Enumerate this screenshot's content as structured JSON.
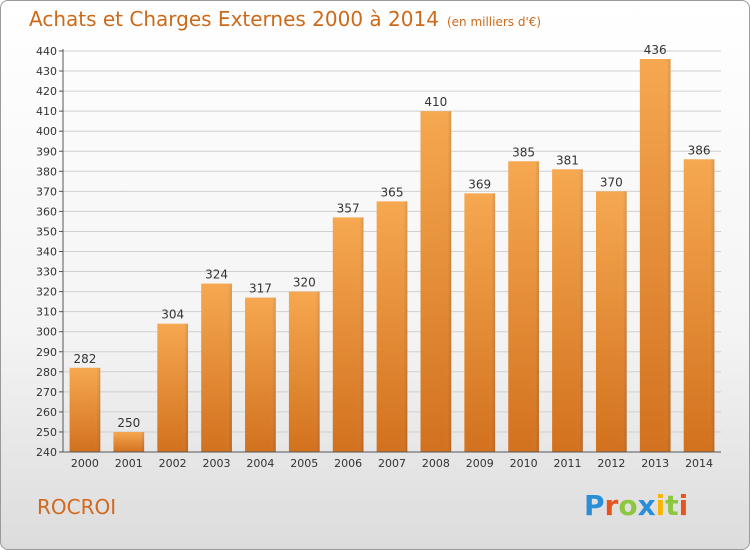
{
  "header": {
    "title": "Achats et Charges Externes 2000 à 2014",
    "unit": "(en milliers d'€)"
  },
  "footer": {
    "city": "ROCROI",
    "logo_text": "Proxiti",
    "logo_colors": [
      "#2a8fd8",
      "#e8541e",
      "#8dc63f",
      "#2a8fd8",
      "#f7b500",
      "#8dc63f",
      "#e8541e"
    ]
  },
  "colors": {
    "bar_top": "#f6a850",
    "bar_bottom": "#d2711e",
    "grid": "#d0d0d0",
    "title": "#cc6a1a"
  },
  "chart_data": {
    "type": "bar",
    "title": "Achats et Charges Externes 2000 à 2014",
    "subtitle": "(en milliers d'€)",
    "xlabel": "",
    "ylabel": "",
    "categories": [
      "2000",
      "2001",
      "2002",
      "2003",
      "2004",
      "2005",
      "2006",
      "2007",
      "2008",
      "2009",
      "2010",
      "2011",
      "2012",
      "2013",
      "2014"
    ],
    "values": [
      282,
      250,
      304,
      324,
      317,
      320,
      357,
      365,
      410,
      369,
      385,
      381,
      370,
      436,
      386
    ],
    "ylim": [
      240,
      440
    ],
    "ytick_step": 10,
    "grid": true,
    "data_labels": true
  }
}
